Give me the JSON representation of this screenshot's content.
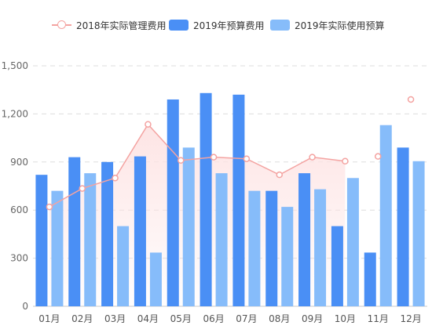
{
  "chart_data": {
    "type": "bar",
    "categories": [
      "01月",
      "02月",
      "03月",
      "04月",
      "05月",
      "06月",
      "07月",
      "08月",
      "09月",
      "10月",
      "11月",
      "12月"
    ],
    "series": [
      {
        "name": "2018年实际管理费用",
        "type": "line",
        "color": "#f4a3a1",
        "values": [
          620,
          735,
          800,
          1135,
          910,
          930,
          920,
          820,
          930,
          905,
          935,
          1290
        ],
        "connected_through_index": 9
      },
      {
        "name": "2019年预算费用",
        "type": "bar",
        "color": "#4a8ff5",
        "values": [
          820,
          930,
          900,
          935,
          1290,
          1330,
          1320,
          720,
          830,
          500,
          335,
          990
        ]
      },
      {
        "name": "2019年实际使用预算",
        "type": "bar",
        "color": "#86bcfa",
        "values": [
          720,
          830,
          500,
          335,
          990,
          830,
          720,
          620,
          730,
          800,
          1130,
          905
        ]
      }
    ],
    "yticks": [
      "0",
      "300",
      "600",
      "900",
      "1,200",
      "1,500"
    ],
    "ylim": [
      0,
      1500
    ],
    "grid": true,
    "legend_position": "top-center",
    "area_fill_color": "#fde3e3",
    "title": "",
    "xlabel": "",
    "ylabel": ""
  }
}
